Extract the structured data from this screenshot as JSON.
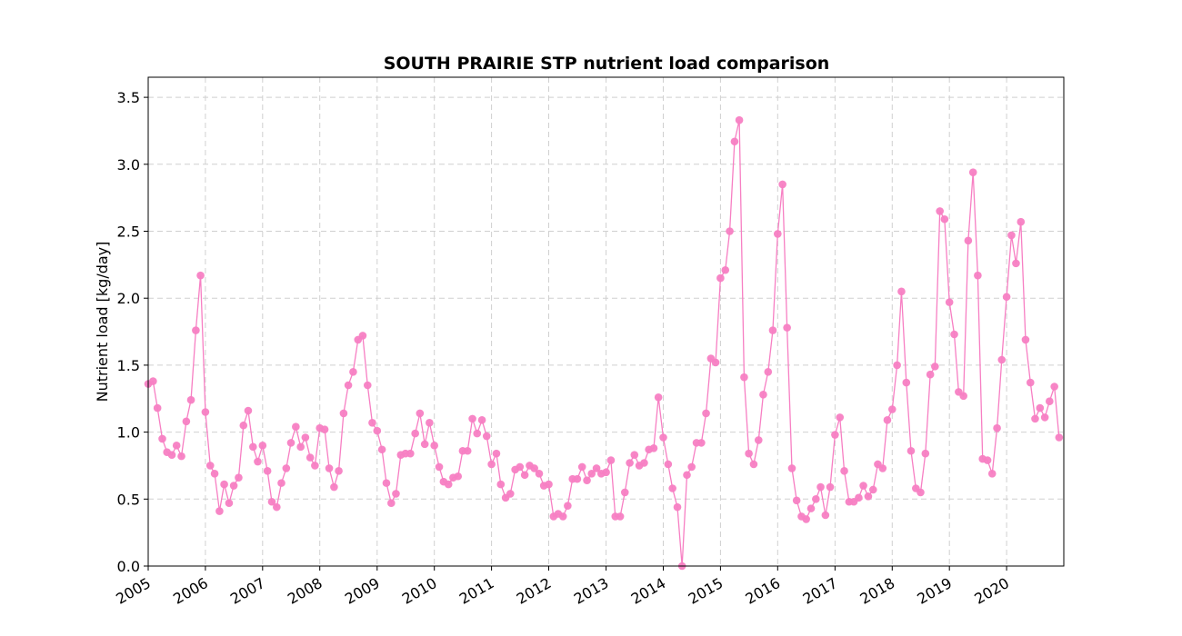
{
  "chart_data": {
    "type": "line",
    "title": "SOUTH PRAIRIE STP nutrient load comparison",
    "xlabel": "",
    "ylabel": "Nutrient load [kg/day]",
    "ylim": [
      0.0,
      3.65
    ],
    "xlim": [
      "2005-01-01",
      "2020-12-31"
    ],
    "grid": true,
    "color": "#f77fc3",
    "x_ticks": [
      "2005",
      "2006",
      "2007",
      "2008",
      "2009",
      "2010",
      "2011",
      "2012",
      "2013",
      "2014",
      "2015",
      "2016",
      "2017",
      "2018",
      "2019",
      "2020"
    ],
    "y_ticks": [
      "0.0",
      "0.5",
      "1.0",
      "1.5",
      "2.0",
      "2.5",
      "3.0",
      "3.5"
    ],
    "series": [
      {
        "x_start": "2005-01",
        "x_step": "month",
        "values": [
          1.36,
          1.38,
          1.18,
          0.95,
          0.85,
          0.83,
          0.9,
          0.82,
          1.08,
          1.24,
          1.76,
          2.17,
          1.15,
          0.75,
          0.69,
          0.41,
          0.61,
          0.47,
          0.6,
          0.66,
          1.05,
          1.16,
          0.89,
          0.78,
          0.9,
          0.71,
          0.48,
          0.44,
          0.62,
          0.73,
          0.92,
          1.04,
          0.89,
          0.96,
          0.81,
          0.75,
          1.03,
          1.02,
          0.73,
          0.59,
          0.71,
          1.14,
          1.35,
          1.45,
          1.69,
          1.72,
          1.35,
          1.07,
          1.01,
          0.87,
          0.62,
          0.47,
          0.54,
          0.83,
          0.84,
          0.84,
          0.99,
          1.14,
          0.91,
          1.07,
          0.9,
          0.74,
          0.63,
          0.61,
          0.66,
          0.67,
          0.86,
          0.86,
          1.1,
          0.99,
          1.09,
          0.97,
          0.76,
          0.84,
          0.61,
          0.51,
          0.54,
          0.72,
          0.74,
          0.68,
          0.75,
          0.73,
          0.69,
          0.6,
          0.61,
          0.37,
          0.39,
          0.37,
          0.45,
          0.65,
          0.65,
          0.74,
          0.64,
          0.69,
          0.73,
          0.69,
          0.7,
          0.79,
          0.37,
          0.37,
          0.55,
          0.77,
          0.83,
          0.75,
          0.77,
          0.87,
          0.88,
          1.26,
          0.96,
          0.76,
          0.58,
          0.44,
          0.0,
          0.68,
          0.74,
          0.92,
          0.92,
          1.14,
          1.55,
          1.52,
          2.15,
          2.21,
          2.5,
          3.17,
          3.33,
          1.41,
          0.84,
          0.76,
          0.94,
          1.28,
          1.45,
          1.76,
          2.48,
          2.85,
          1.78,
          0.73,
          0.49,
          0.37,
          0.35,
          0.43,
          0.5,
          0.59,
          0.38,
          0.59,
          0.98,
          1.11,
          0.71,
          0.48,
          0.48,
          0.51,
          0.6,
          0.52,
          0.57,
          0.76,
          0.73,
          1.09,
          1.17,
          1.5,
          2.05,
          1.37,
          0.86,
          0.58,
          0.55,
          0.84,
          1.43,
          1.49,
          2.65,
          2.59,
          1.97,
          1.73,
          1.3,
          1.27,
          2.43,
          2.94,
          2.17,
          0.8,
          0.79,
          0.69,
          1.03,
          1.54,
          2.01,
          2.47,
          2.26,
          2.57,
          1.69,
          1.37,
          1.1,
          1.18,
          1.11,
          1.23,
          1.34,
          0.96
        ]
      }
    ]
  }
}
